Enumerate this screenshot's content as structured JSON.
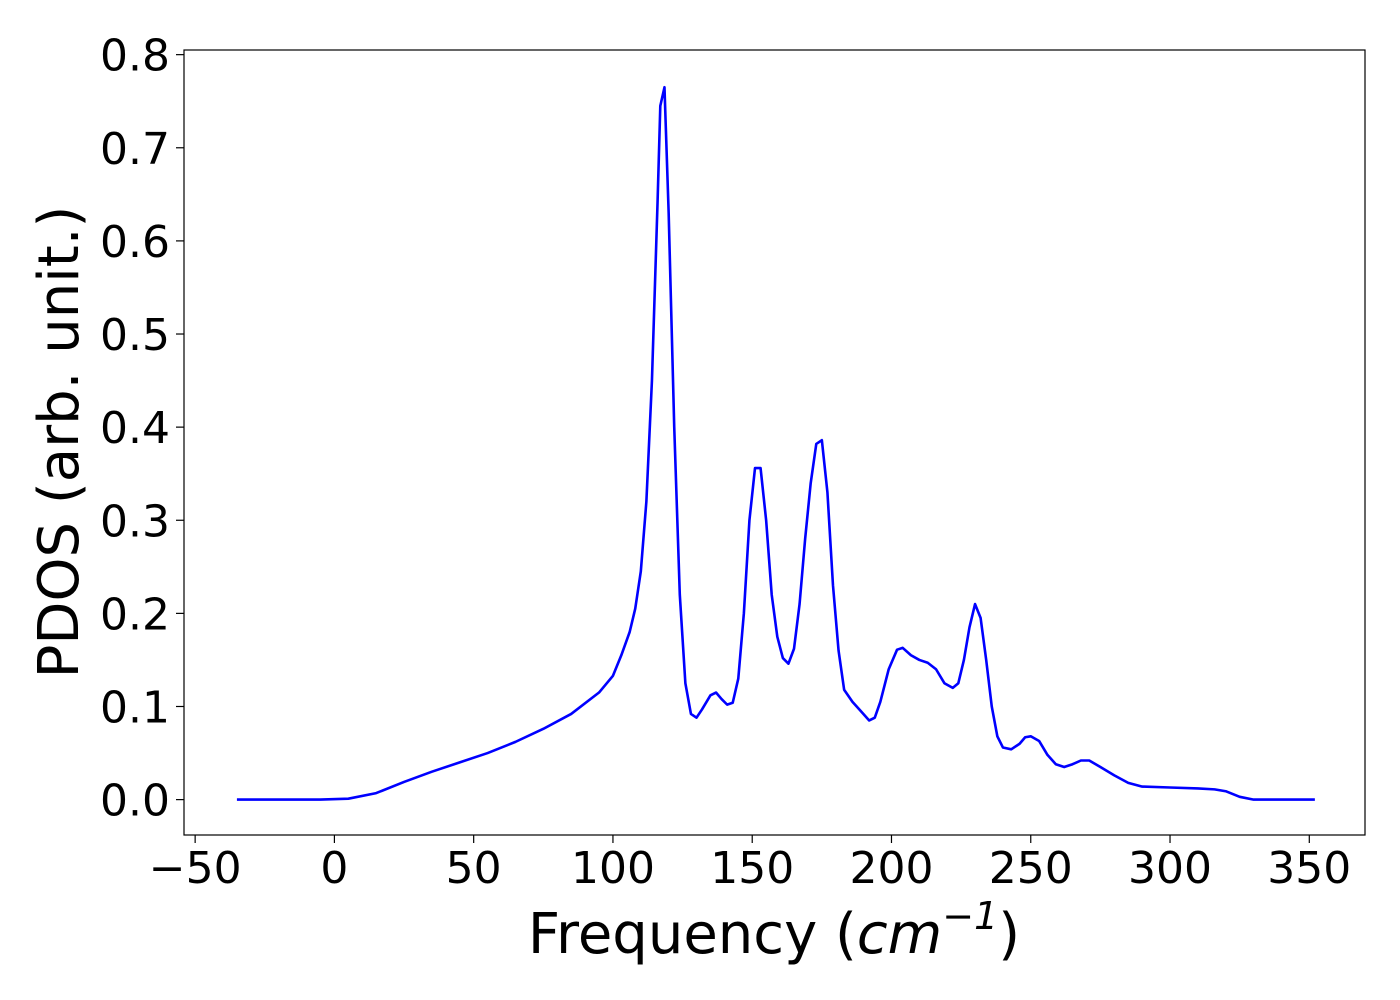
{
  "chart_data": {
    "type": "line",
    "title": "",
    "xlabel_text": "Frequency (",
    "xlabel_math_base": "cm",
    "xlabel_math_sup": "−1",
    "xlabel_close": ")",
    "ylabel": "PDOS (arb. unit.)",
    "xlim": [
      -54,
      370
    ],
    "ylim": [
      -0.038,
      0.805
    ],
    "xticks": [
      -50,
      0,
      50,
      100,
      150,
      200,
      250,
      300,
      350
    ],
    "xtick_labels": [
      "−50",
      "0",
      "50",
      "100",
      "150",
      "200",
      "250",
      "300",
      "350"
    ],
    "yticks": [
      0.0,
      0.1,
      0.2,
      0.3,
      0.4,
      0.5,
      0.6,
      0.7,
      0.8
    ],
    "ytick_labels": [
      "0.0",
      "0.1",
      "0.2",
      "0.3",
      "0.4",
      "0.5",
      "0.6",
      "0.7",
      "0.8"
    ],
    "grid": false,
    "series": [
      {
        "color": "#0000ff",
        "x": [
          -35,
          -20,
          -5,
          5,
          15,
          25,
          35,
          45,
          55,
          65,
          75,
          85,
          95,
          100,
          103,
          106,
          108,
          110,
          112,
          114,
          116,
          117,
          118.5,
          120,
          122,
          124,
          126,
          128,
          130,
          132,
          135,
          137,
          139,
          141,
          143,
          145,
          147,
          149,
          151,
          153,
          155,
          157,
          159,
          161,
          163,
          165,
          167,
          169,
          171,
          173,
          175,
          177,
          179,
          181,
          183,
          186,
          189,
          192,
          194,
          196,
          199,
          202,
          204,
          207,
          210,
          213,
          216,
          219,
          222,
          224,
          226,
          228,
          230,
          232,
          234,
          236,
          238,
          240,
          243,
          246,
          248,
          250,
          253,
          256,
          259,
          262,
          265,
          268,
          271,
          275,
          280,
          285,
          290,
          300,
          310,
          316,
          320,
          325,
          330,
          340,
          352
        ],
        "y": [
          0.0,
          0.0,
          0.0,
          0.001,
          0.007,
          0.019,
          0.03,
          0.04,
          0.05,
          0.062,
          0.076,
          0.092,
          0.115,
          0.133,
          0.155,
          0.18,
          0.205,
          0.245,
          0.32,
          0.45,
          0.64,
          0.745,
          0.765,
          0.63,
          0.4,
          0.22,
          0.125,
          0.092,
          0.088,
          0.097,
          0.112,
          0.115,
          0.108,
          0.102,
          0.104,
          0.13,
          0.2,
          0.3,
          0.356,
          0.356,
          0.3,
          0.22,
          0.175,
          0.152,
          0.146,
          0.162,
          0.21,
          0.28,
          0.34,
          0.382,
          0.386,
          0.33,
          0.23,
          0.16,
          0.118,
          0.105,
          0.095,
          0.085,
          0.088,
          0.105,
          0.14,
          0.161,
          0.163,
          0.155,
          0.15,
          0.147,
          0.14,
          0.125,
          0.12,
          0.125,
          0.15,
          0.185,
          0.21,
          0.195,
          0.15,
          0.1,
          0.068,
          0.056,
          0.054,
          0.06,
          0.067,
          0.068,
          0.063,
          0.048,
          0.038,
          0.035,
          0.038,
          0.042,
          0.042,
          0.035,
          0.026,
          0.018,
          0.014,
          0.013,
          0.012,
          0.011,
          0.009,
          0.003,
          0.0,
          0.0,
          0.0
        ]
      }
    ]
  }
}
